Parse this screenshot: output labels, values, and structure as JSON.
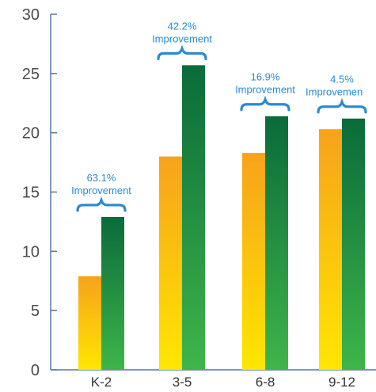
{
  "chart_data": {
    "type": "bar",
    "categories": [
      "K-2",
      "3-5",
      "6-8",
      "9-12"
    ],
    "series": [
      {
        "values": [
          7.9,
          18.0,
          18.3,
          20.3
        ]
      },
      {
        "values": [
          12.9,
          25.7,
          21.4,
          21.2
        ]
      }
    ],
    "ylim": [
      0,
      30
    ],
    "yticks": [
      "0",
      "5",
      "10",
      "15",
      "20",
      "25",
      "30"
    ],
    "annotations": [
      {
        "category": "K-2",
        "pct": "63.1%",
        "text": "Improvement"
      },
      {
        "category": "3-5",
        "pct": "42.2%",
        "text": "Improvement"
      },
      {
        "category": "6-8",
        "pct": "16.9%",
        "text": "Improvement"
      },
      {
        "category": "9-12",
        "pct": "4.5%",
        "text": "Improvemen"
      }
    ],
    "grid": false,
    "legend": "none",
    "colors": {
      "series1_top": "#f7a21b",
      "series1_bottom": "#ffe600",
      "series2_top": "#0a6b3a",
      "series2_bottom": "#3fb54a",
      "axis": "#5577aa",
      "annotation": "#2a8ad0"
    }
  }
}
